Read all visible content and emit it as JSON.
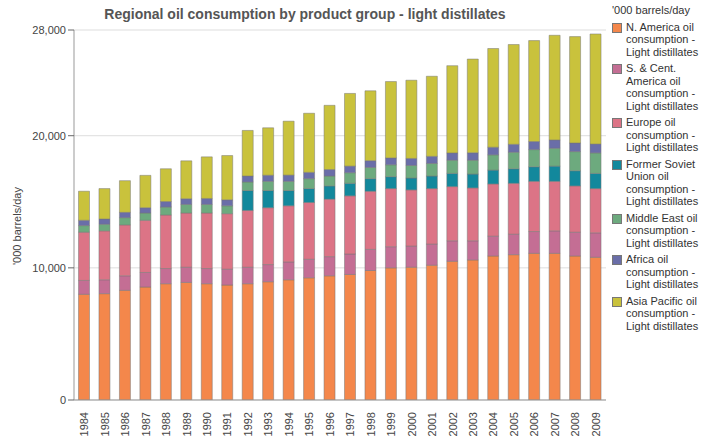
{
  "chart_data": {
    "type": "bar",
    "stacked": true,
    "grid": true,
    "legend": "right",
    "title": "Regional oil consumption by product group - light distillates",
    "y_label": "'000 barrels/day",
    "categories": [
      "1984",
      "1985",
      "1986",
      "1987",
      "1988",
      "1989",
      "1990",
      "1991",
      "1992",
      "1993",
      "1994",
      "1995",
      "1996",
      "1997",
      "1998",
      "1999",
      "2000",
      "2001",
      "2002",
      "2003",
      "2004",
      "2005",
      "2006",
      "2007",
      "2008",
      "2009"
    ],
    "ylim": [
      0,
      28000
    ],
    "yticks": [
      0,
      {
        "value": 10000,
        "label": "10,000"
      },
      {
        "value": 20000,
        "label": "20,000"
      },
      {
        "value": 28000,
        "label": "28,000"
      }
    ],
    "series": [
      {
        "name": "N. America oil consumption - Light distillates",
        "color": "#F4874B",
        "values": [
          8000,
          8050,
          8300,
          8550,
          8800,
          8900,
          8800,
          8700,
          8800,
          8950,
          9100,
          9250,
          9400,
          9500,
          9800,
          10000,
          10050,
          10200,
          10500,
          10600,
          10900,
          11000,
          11100,
          11100,
          10900,
          10800
        ]
      },
      {
        "name": "S. & Cent. America oil consumption - Light distillates",
        "color": "#C46E94",
        "values": [
          1050,
          1050,
          1100,
          1100,
          1150,
          1150,
          1150,
          1200,
          1250,
          1300,
          1350,
          1400,
          1450,
          1550,
          1600,
          1600,
          1600,
          1600,
          1550,
          1450,
          1500,
          1550,
          1650,
          1700,
          1800,
          1850
        ]
      },
      {
        "name": "Europe oil consumption - Light distillates",
        "color": "#DC7486",
        "values": [
          3650,
          3700,
          3850,
          3950,
          4050,
          4100,
          4200,
          4200,
          4300,
          4300,
          4250,
          4300,
          4350,
          4400,
          4400,
          4400,
          4250,
          4200,
          4100,
          4000,
          3950,
          3850,
          3800,
          3750,
          3500,
          3350
        ]
      },
      {
        "name": "Former Soviet Union oil consumption - Light distillates",
        "color": "#12889C",
        "values": [
          null,
          null,
          null,
          null,
          null,
          null,
          null,
          null,
          1500,
          1300,
          1150,
          1050,
          1000,
          950,
          950,
          900,
          900,
          950,
          1000,
          1050,
          1050,
          1100,
          1100,
          1150,
          1150,
          1150
        ]
      },
      {
        "name": "Middle East oil consumption - Light distillates",
        "color": "#6DAA7E",
        "values": [
          500,
          500,
          550,
          550,
          600,
          650,
          650,
          600,
          650,
          700,
          700,
          750,
          750,
          800,
          850,
          900,
          950,
          950,
          1000,
          1050,
          1150,
          1250,
          1300,
          1350,
          1450,
          1550
        ]
      },
      {
        "name": "Africa oil consumption - Light distillates",
        "color": "#6A6EA8",
        "values": [
          400,
          400,
          400,
          400,
          420,
          430,
          450,
          450,
          450,
          460,
          470,
          480,
          490,
          500,
          510,
          520,
          530,
          540,
          550,
          560,
          580,
          600,
          610,
          630,
          650,
          670
        ]
      },
      {
        "name": "Asia Pacific oil consumption - Light distillates",
        "color": "#C9C23C",
        "values": [
          2200,
          2300,
          2400,
          2450,
          2480,
          2870,
          3150,
          3350,
          3450,
          3590,
          4080,
          4470,
          4860,
          5500,
          5290,
          5780,
          5920,
          6060,
          6600,
          7090,
          7470,
          7550,
          7640,
          7920,
          8050,
          8330
        ]
      }
    ]
  }
}
